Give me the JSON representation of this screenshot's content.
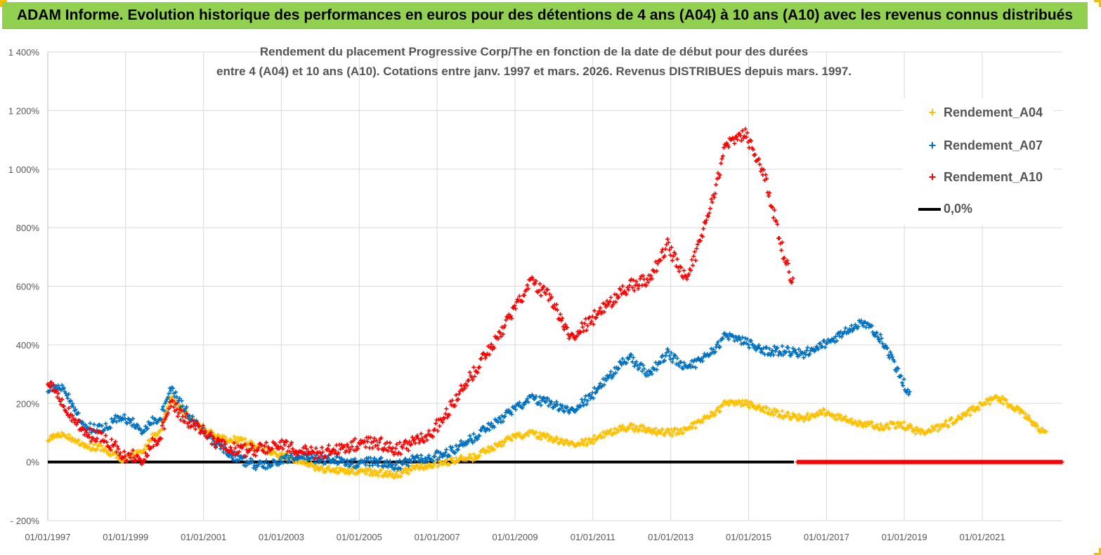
{
  "banner": {
    "title": "ADAM Informe. Evolution historique des performances en euros pour des détentions de 4 ans (A04) à 10 ans (A10) avec les revenus connus distribués"
  },
  "colors": {
    "banner": "#92d050",
    "A04": "#ffc000",
    "A07": "#0070c0",
    "A10": "#ff0000",
    "zero": "#000000",
    "grid": "#d9d9d9"
  },
  "chart_data": {
    "type": "scatter",
    "title_lines": [
      "Rendement du placement Progressive Corp/The en fonction de la date de début pour des durées",
      "entre 4 (A04) et 10 ans (A10). Cotations entre janv. 1997 et mars. 2026. Revenus DISTRIBUES depuis mars. 1997."
    ],
    "xlabel": "",
    "ylabel": "",
    "x_range": [
      "01/01/1997",
      "22/01/2023"
    ],
    "x_ticks": [
      "01/01/1997",
      "01/01/1999",
      "01/01/2001",
      "01/01/2003",
      "01/01/2005",
      "01/01/2007",
      "01/01/2009",
      "01/01/2011",
      "01/01/2013",
      "01/01/2015",
      "01/01/2017",
      "01/01/2019",
      "01/01/2021"
    ],
    "ylim": [
      -200,
      1400
    ],
    "y_ticks": [
      -200,
      0,
      200,
      400,
      600,
      800,
      1000,
      1200,
      1400
    ],
    "y_tick_labels": [
      "- 200%",
      "0%",
      "200%",
      "400%",
      "600%",
      "800%",
      "1 000%",
      "1 200%",
      "1 400%"
    ],
    "grid": true,
    "legend_position": "top-right",
    "series": [
      {
        "name": "Rendement_A04",
        "marker": "+",
        "points": [
          [
            "1997-01-01",
            80
          ],
          [
            "1997-06-01",
            100
          ],
          [
            "1997-12-01",
            55
          ],
          [
            "1998-06-01",
            45
          ],
          [
            "1998-12-01",
            10
          ],
          [
            "1999-06-01",
            40
          ],
          [
            "1999-12-01",
            120
          ],
          [
            "2000-03-01",
            220
          ],
          [
            "2000-06-01",
            180
          ],
          [
            "2000-12-01",
            120
          ],
          [
            "2001-06-01",
            80
          ],
          [
            "2001-12-01",
            75
          ],
          [
            "2002-06-01",
            50
          ],
          [
            "2002-12-01",
            25
          ],
          [
            "2003-06-01",
            5
          ],
          [
            "2003-12-01",
            -20
          ],
          [
            "2004-06-01",
            -30
          ],
          [
            "2004-12-01",
            -30
          ],
          [
            "2005-06-01",
            -35
          ],
          [
            "2005-12-01",
            -45
          ],
          [
            "2006-06-01",
            -20
          ],
          [
            "2006-12-01",
            -5
          ],
          [
            "2007-06-01",
            5
          ],
          [
            "2007-12-01",
            15
          ],
          [
            "2008-06-01",
            50
          ],
          [
            "2008-12-01",
            80
          ],
          [
            "2009-06-01",
            100
          ],
          [
            "2009-12-01",
            80
          ],
          [
            "2010-06-01",
            60
          ],
          [
            "2010-12-01",
            70
          ],
          [
            "2011-06-01",
            100
          ],
          [
            "2011-12-01",
            120
          ],
          [
            "2012-06-01",
            110
          ],
          [
            "2012-12-01",
            100
          ],
          [
            "2013-06-01",
            110
          ],
          [
            "2013-12-01",
            150
          ],
          [
            "2014-06-01",
            200
          ],
          [
            "2014-12-01",
            200
          ],
          [
            "2015-06-01",
            180
          ],
          [
            "2015-12-01",
            160
          ],
          [
            "2016-06-01",
            150
          ],
          [
            "2016-12-01",
            170
          ],
          [
            "2017-06-01",
            150
          ],
          [
            "2017-12-01",
            130
          ],
          [
            "2018-06-01",
            120
          ],
          [
            "2018-12-01",
            130
          ],
          [
            "2019-06-01",
            100
          ],
          [
            "2019-12-01",
            120
          ],
          [
            "2020-06-01",
            150
          ],
          [
            "2020-12-01",
            190
          ],
          [
            "2021-06-01",
            220
          ],
          [
            "2021-12-01",
            180
          ],
          [
            "2022-06-01",
            120
          ],
          [
            "2022-09-01",
            95
          ]
        ]
      },
      {
        "name": "Rendement_A07",
        "marker": "+",
        "points": [
          [
            "1997-01-01",
            250
          ],
          [
            "1997-06-01",
            260
          ],
          [
            "1997-12-01",
            120
          ],
          [
            "1998-06-01",
            110
          ],
          [
            "1998-12-01",
            160
          ],
          [
            "1999-06-01",
            110
          ],
          [
            "1999-12-01",
            160
          ],
          [
            "2000-03-01",
            250
          ],
          [
            "2000-06-01",
            200
          ],
          [
            "2000-12-01",
            110
          ],
          [
            "2001-06-01",
            50
          ],
          [
            "2001-12-01",
            10
          ],
          [
            "2002-06-01",
            -15
          ],
          [
            "2002-12-01",
            0
          ],
          [
            "2003-06-01",
            20
          ],
          [
            "2003-12-01",
            10
          ],
          [
            "2004-06-01",
            5
          ],
          [
            "2004-12-01",
            -5
          ],
          [
            "2005-06-01",
            5
          ],
          [
            "2005-12-01",
            -15
          ],
          [
            "2006-06-01",
            10
          ],
          [
            "2006-12-01",
            20
          ],
          [
            "2007-06-01",
            40
          ],
          [
            "2007-12-01",
            80
          ],
          [
            "2008-06-01",
            130
          ],
          [
            "2008-12-01",
            170
          ],
          [
            "2009-06-01",
            220
          ],
          [
            "2009-12-01",
            200
          ],
          [
            "2010-06-01",
            170
          ],
          [
            "2010-12-01",
            220
          ],
          [
            "2011-06-01",
            290
          ],
          [
            "2011-12-01",
            360
          ],
          [
            "2012-06-01",
            300
          ],
          [
            "2012-12-01",
            370
          ],
          [
            "2013-06-01",
            320
          ],
          [
            "2013-12-01",
            360
          ],
          [
            "2014-06-01",
            430
          ],
          [
            "2014-12-01",
            410
          ],
          [
            "2015-06-01",
            380
          ],
          [
            "2015-12-01",
            380
          ],
          [
            "2016-06-01",
            370
          ],
          [
            "2016-12-01",
            400
          ],
          [
            "2017-06-01",
            440
          ],
          [
            "2017-12-01",
            480
          ],
          [
            "2018-06-01",
            420
          ],
          [
            "2018-12-01",
            290
          ],
          [
            "2019-03-01",
            220
          ]
        ]
      },
      {
        "name": "Rendement_A10",
        "marker": "+",
        "points": [
          [
            "1997-01-01",
            280
          ],
          [
            "1997-06-01",
            200
          ],
          [
            "1997-12-01",
            100
          ],
          [
            "1998-06-01",
            80
          ],
          [
            "1998-12-01",
            30
          ],
          [
            "1999-06-01",
            10
          ],
          [
            "1999-12-01",
            100
          ],
          [
            "2000-03-01",
            200
          ],
          [
            "2000-06-01",
            160
          ],
          [
            "2000-12-01",
            110
          ],
          [
            "2001-06-01",
            60
          ],
          [
            "2001-12-01",
            40
          ],
          [
            "2002-06-01",
            40
          ],
          [
            "2002-12-01",
            60
          ],
          [
            "2003-06-01",
            40
          ],
          [
            "2003-12-01",
            30
          ],
          [
            "2004-06-01",
            40
          ],
          [
            "2004-12-01",
            60
          ],
          [
            "2005-06-01",
            70
          ],
          [
            "2005-12-01",
            40
          ],
          [
            "2006-06-01",
            70
          ],
          [
            "2006-12-01",
            110
          ],
          [
            "2007-06-01",
            200
          ],
          [
            "2007-12-01",
            300
          ],
          [
            "2008-06-01",
            400
          ],
          [
            "2008-12-01",
            500
          ],
          [
            "2009-06-01",
            620
          ],
          [
            "2009-12-01",
            560
          ],
          [
            "2010-06-01",
            420
          ],
          [
            "2010-12-01",
            480
          ],
          [
            "2011-06-01",
            540
          ],
          [
            "2011-12-01",
            600
          ],
          [
            "2012-06-01",
            620
          ],
          [
            "2012-12-01",
            740
          ],
          [
            "2013-06-01",
            620
          ],
          [
            "2013-12-01",
            820
          ],
          [
            "2014-06-01",
            1080
          ],
          [
            "2014-12-01",
            1120
          ],
          [
            "2015-06-01",
            980
          ],
          [
            "2015-12-01",
            700
          ],
          [
            "2016-03-01",
            600
          ]
        ]
      },
      {
        "name": "0,0%",
        "line": true,
        "points": [
          [
            "1997-01-01",
            0
          ],
          [
            "2016-03-01",
            0
          ]
        ]
      }
    ],
    "zero_markers": {
      "series": "Rendement_A10",
      "from": "2016-04-01",
      "to": "2023-01-22",
      "value": 0
    }
  }
}
